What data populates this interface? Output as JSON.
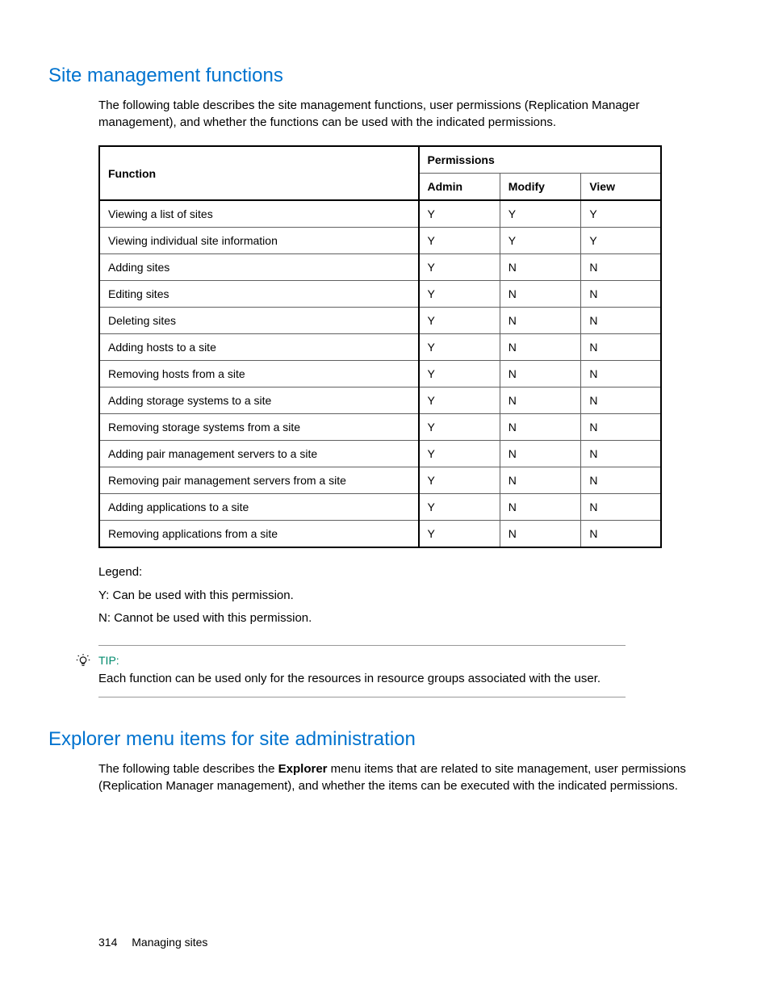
{
  "section1": {
    "title": "Site management functions",
    "intro": "The following table describes the site management functions, user permissions (Replication Manager management), and whether the functions can be used with the indicated permissions."
  },
  "table": {
    "header_function": "Function",
    "header_permissions": "Permissions",
    "col_admin": "Admin",
    "col_modify": "Modify",
    "col_view": "View",
    "rows": [
      {
        "fn": "Viewing a list of sites",
        "admin": "Y",
        "modify": "Y",
        "view": "Y"
      },
      {
        "fn": "Viewing individual site information",
        "admin": "Y",
        "modify": "Y",
        "view": "Y"
      },
      {
        "fn": "Adding sites",
        "admin": "Y",
        "modify": "N",
        "view": "N"
      },
      {
        "fn": "Editing sites",
        "admin": "Y",
        "modify": "N",
        "view": "N"
      },
      {
        "fn": "Deleting sites",
        "admin": "Y",
        "modify": "N",
        "view": "N"
      },
      {
        "fn": "Adding hosts to a site",
        "admin": "Y",
        "modify": "N",
        "view": "N"
      },
      {
        "fn": "Removing hosts from a site",
        "admin": "Y",
        "modify": "N",
        "view": "N"
      },
      {
        "fn": "Adding storage systems to a site",
        "admin": "Y",
        "modify": "N",
        "view": "N"
      },
      {
        "fn": "Removing storage systems from a site",
        "admin": "Y",
        "modify": "N",
        "view": "N"
      },
      {
        "fn": "Adding pair management servers to a site",
        "admin": "Y",
        "modify": "N",
        "view": "N"
      },
      {
        "fn": "Removing pair management servers from a site",
        "admin": "Y",
        "modify": "N",
        "view": "N"
      },
      {
        "fn": "Adding applications to a site",
        "admin": "Y",
        "modify": "N",
        "view": "N"
      },
      {
        "fn": "Removing applications from a site",
        "admin": "Y",
        "modify": "N",
        "view": "N"
      }
    ]
  },
  "legend": {
    "title": "Legend:",
    "y": "Y: Can be used with this permission.",
    "n": "N: Cannot be used with this permission."
  },
  "tip": {
    "label": "TIP:",
    "text": "Each function can be used only for the resources in resource groups associated with the user."
  },
  "section2": {
    "title": "Explorer menu items for site administration",
    "intro_pre": "The following table describes the ",
    "intro_bold": "Explorer",
    "intro_post": " menu items that are related to site management, user permissions (Replication Manager management), and whether the items can be executed with the indicated permissions."
  },
  "footer": {
    "page_number": "314",
    "chapter": "Managing sites"
  }
}
